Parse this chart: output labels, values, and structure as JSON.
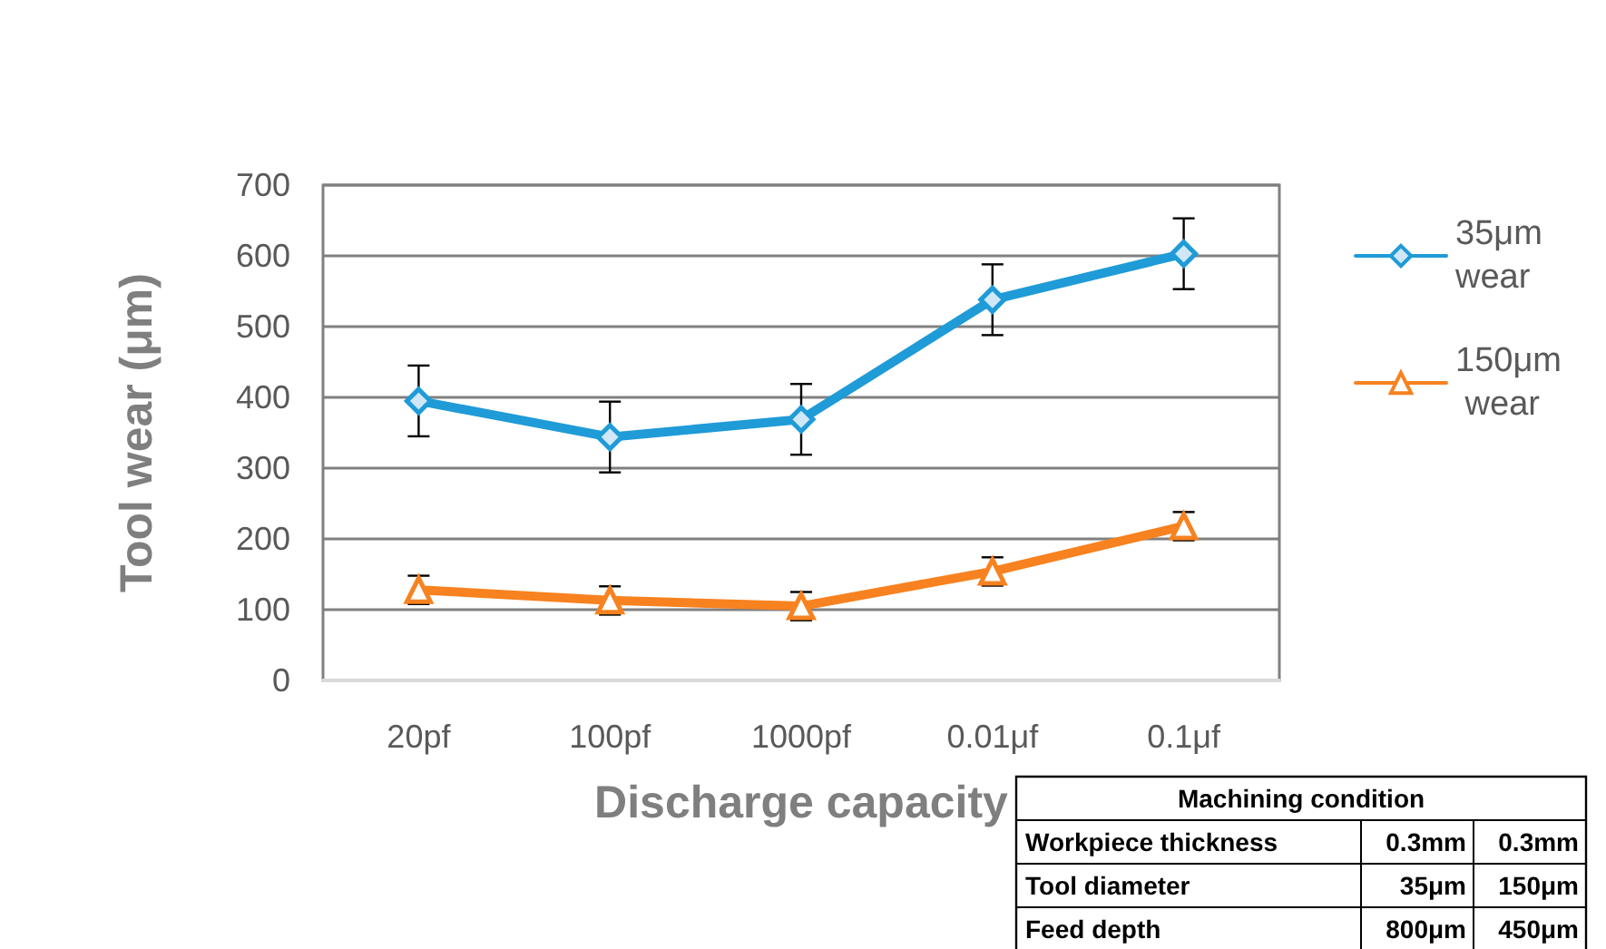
{
  "chart_data": {
    "type": "line",
    "xlabel": "Discharge capacity",
    "ylabel": "Tool wear (μm)",
    "categories": [
      "20pf",
      "100pf",
      "1000pf",
      "0.01μf",
      "0.1μf"
    ],
    "series": [
      {
        "name": "35μm wear",
        "color": "#1f9bd7",
        "marker": "diamond",
        "values": [
          395,
          344,
          369,
          538,
          603
        ],
        "errors": [
          50,
          50,
          50,
          50,
          50
        ]
      },
      {
        "name": "150μm wear",
        "color": "#f7821f",
        "marker": "triangle",
        "values": [
          128,
          113,
          105,
          154,
          218
        ],
        "errors": [
          20,
          20,
          20,
          20,
          20
        ]
      }
    ],
    "ylim": [
      0,
      700
    ],
    "yticks": [
      0,
      100,
      200,
      300,
      400,
      500,
      600,
      700
    ],
    "grid": "y",
    "legend": "right",
    "annotations": [
      "Machining condition",
      "Workpiece thickness",
      "0.3mm",
      "0.3mm",
      "Tool diameter",
      "35μm",
      "150μm",
      "Feed depth",
      "800μm",
      "450μm"
    ]
  }
}
